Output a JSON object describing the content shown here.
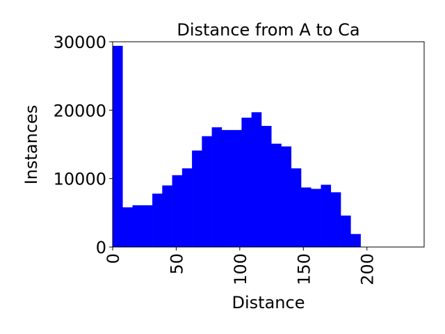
{
  "chart_data": {
    "type": "bar",
    "title": "Distance from A to Ca",
    "xlabel": "Distance",
    "ylabel": "Instances",
    "xlim": [
      0,
      245
    ],
    "ylim": [
      0,
      30000
    ],
    "xticks": [
      0,
      50,
      100,
      150,
      200
    ],
    "yticks": [
      0,
      10000,
      20000,
      30000
    ],
    "xtick_labels": [
      "0",
      "50",
      "100",
      "150",
      "200"
    ],
    "ytick_labels": [
      "0",
      "10000",
      "20000",
      "30000"
    ],
    "xtick_rotation": 90,
    "grid": false,
    "legend": "none",
    "bar_color": "#0000ff",
    "bin_edges": [
      0,
      7.8,
      15.6,
      23.4,
      31.2,
      39,
      46.8,
      54.6,
      62.4,
      70.2,
      78,
      85.8,
      93.6,
      101.4,
      109.2,
      117,
      124.8,
      132.6,
      140.4,
      148.2,
      156,
      163.8,
      171.6,
      179.4,
      187.2,
      195
    ],
    "values": [
      29400,
      5800,
      6100,
      6100,
      7800,
      9000,
      10500,
      11500,
      14100,
      16200,
      17500,
      17100,
      17100,
      18900,
      19700,
      17700,
      15100,
      14700,
      11500,
      8700,
      8500,
      9100,
      8000,
      4600,
      1900
    ]
  }
}
